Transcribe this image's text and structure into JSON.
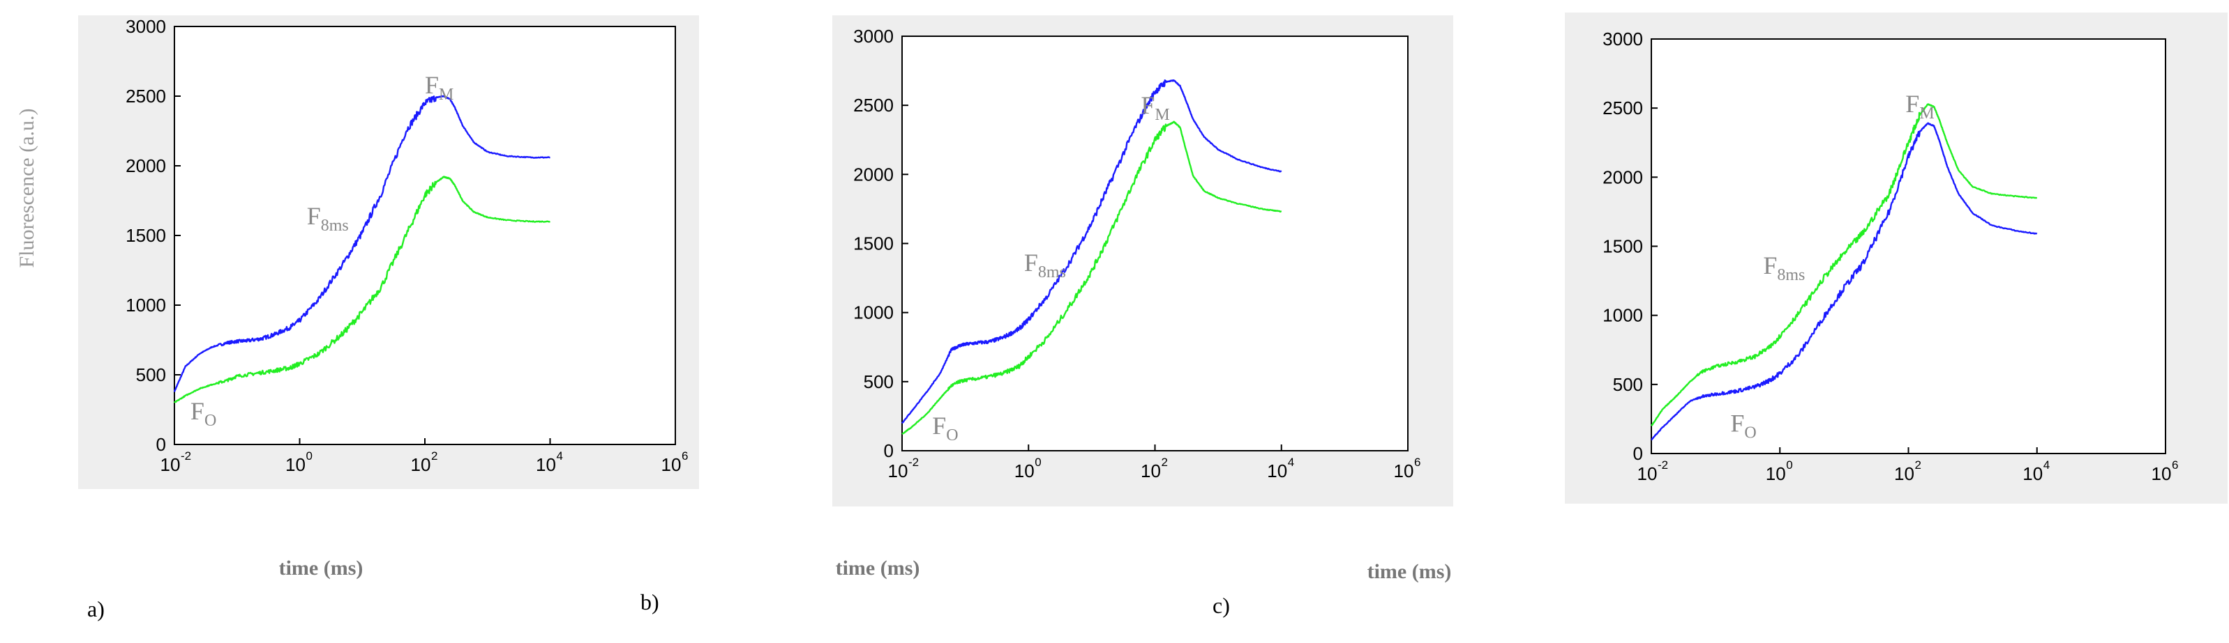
{
  "figure": {
    "ylabel": "Fluorescence (a.u.)",
    "colors": {
      "series_1": "#1a1aff",
      "series_2": "#22ee22",
      "panel_bg": "#eeeeee",
      "axes_bg": "#ffffff"
    }
  },
  "chart_data": [
    {
      "type": "line",
      "panel_label": "a)",
      "xlabel": "time (ms)",
      "ylabel": "Fluorescence (a.u.)",
      "xscale": "log",
      "xlim": [
        0.01,
        1000000
      ],
      "ylim": [
        0,
        3000
      ],
      "xticks": [
        "10",
        "10",
        "10",
        "10",
        "10"
      ],
      "xtick_exponents": [
        "-2",
        "0",
        "2",
        "4",
        "6"
      ],
      "yticks": [
        "0",
        "500",
        "1000",
        "1500",
        "2000",
        "2500",
        "3000"
      ],
      "grid": false,
      "annotations": [
        {
          "text": "F",
          "sub": "M",
          "x": 100,
          "y": 2520
        },
        {
          "text": "F",
          "sub": "8ms",
          "x": 1.3,
          "y": 1580
        },
        {
          "text": "F",
          "sub": "O",
          "x": 0.018,
          "y": 180
        }
      ],
      "series": [
        {
          "color": "#1a1aff",
          "noisy": true,
          "x": [
            0.01,
            0.015,
            0.025,
            0.04,
            0.07,
            0.1,
            0.15,
            0.25,
            0.4,
            0.7,
            1,
            2,
            5,
            10,
            20,
            50,
            100,
            150,
            200,
            250,
            300,
            400,
            600,
            1000,
            2000,
            5000,
            10000
          ],
          "y": [
            380,
            560,
            650,
            700,
            730,
            740,
            745,
            760,
            790,
            840,
            890,
            1040,
            1300,
            1520,
            1800,
            2250,
            2450,
            2490,
            2500,
            2480,
            2420,
            2290,
            2170,
            2100,
            2070,
            2060,
            2060
          ]
        },
        {
          "color": "#22ee22",
          "noisy": true,
          "x": [
            0.01,
            0.015,
            0.025,
            0.04,
            0.07,
            0.1,
            0.2,
            0.4,
            0.7,
            1,
            2,
            5,
            10,
            20,
            50,
            100,
            150,
            200,
            250,
            300,
            400,
            600,
            1000,
            2000,
            5000,
            10000
          ],
          "y": [
            300,
            350,
            400,
            430,
            460,
            490,
            510,
            530,
            550,
            580,
            650,
            800,
            950,
            1130,
            1500,
            1790,
            1880,
            1920,
            1910,
            1860,
            1750,
            1670,
            1630,
            1610,
            1600,
            1600
          ]
        }
      ]
    },
    {
      "type": "line",
      "panel_label": "b)",
      "xlabel": "time (ms)",
      "xscale": "log",
      "xlim": [
        0.01,
        1000000
      ],
      "ylim": [
        0,
        3000
      ],
      "xticks": [
        "10",
        "10",
        "10",
        "10",
        "10"
      ],
      "xtick_exponents": [
        "-2",
        "0",
        "2",
        "4",
        "6"
      ],
      "yticks": [
        "0",
        "500",
        "1000",
        "1500",
        "2000",
        "2500",
        "3000"
      ],
      "grid": false,
      "annotations": [
        {
          "text": "F",
          "sub": "M",
          "x": 60,
          "y": 2440
        },
        {
          "text": "F",
          "sub": "8ms",
          "x": 0.85,
          "y": 1300
        },
        {
          "text": "F",
          "sub": "O",
          "x": 0.03,
          "y": 120
        }
      ],
      "series": [
        {
          "color": "#1a1aff",
          "noisy": true,
          "x": [
            0.01,
            0.015,
            0.025,
            0.04,
            0.06,
            0.08,
            0.1,
            0.15,
            0.25,
            0.4,
            0.7,
            1,
            2,
            5,
            10,
            20,
            50,
            100,
            150,
            200,
            250,
            300,
            400,
            600,
            1000,
            2000,
            5000,
            10000
          ],
          "y": [
            200,
            300,
            430,
            560,
            730,
            760,
            770,
            780,
            790,
            820,
            880,
            950,
            1120,
            1400,
            1650,
            1950,
            2350,
            2600,
            2670,
            2680,
            2640,
            2550,
            2400,
            2270,
            2180,
            2110,
            2050,
            2020
          ]
        },
        {
          "color": "#22ee22",
          "noisy": true,
          "x": [
            0.01,
            0.015,
            0.025,
            0.04,
            0.06,
            0.08,
            0.1,
            0.2,
            0.4,
            0.7,
            1,
            2,
            5,
            10,
            20,
            50,
            100,
            150,
            200,
            250,
            300,
            400,
            600,
            1000,
            2000,
            5000,
            10000
          ],
          "y": [
            120,
            180,
            270,
            380,
            470,
            500,
            510,
            530,
            560,
            610,
            680,
            820,
            1080,
            1300,
            1580,
            1980,
            2250,
            2350,
            2380,
            2340,
            2200,
            1990,
            1880,
            1830,
            1790,
            1750,
            1730
          ]
        }
      ]
    },
    {
      "type": "line",
      "panel_label": "c)",
      "xlabel": "time (ms)",
      "xscale": "log",
      "xlim": [
        0.01,
        1000000
      ],
      "ylim": [
        0,
        3000
      ],
      "xticks": [
        "10",
        "10",
        "10",
        "10",
        "10"
      ],
      "xtick_exponents": [
        "-2",
        "0",
        "2",
        "4",
        "6"
      ],
      "yticks": [
        "0",
        "500",
        "1000",
        "1500",
        "2000",
        "2500",
        "3000"
      ],
      "grid": false,
      "annotations": [
        {
          "text": "F",
          "sub": "M",
          "x": 90,
          "y": 2470
        },
        {
          "text": "F",
          "sub": "8ms",
          "x": 0.55,
          "y": 1300
        },
        {
          "text": "F",
          "sub": "O",
          "x": 0.17,
          "y": 160
        }
      ],
      "series": [
        {
          "color": "#1a1aff",
          "noisy": true,
          "x": [
            0.01,
            0.015,
            0.025,
            0.04,
            0.06,
            0.1,
            0.2,
            0.4,
            0.7,
            1,
            2,
            5,
            10,
            20,
            50,
            100,
            150,
            200,
            250,
            300,
            400,
            600,
            1000,
            2000,
            5000,
            10000
          ],
          "y": [
            100,
            190,
            290,
            380,
            410,
            430,
            450,
            480,
            530,
            580,
            720,
            1000,
            1200,
            1380,
            1750,
            2150,
            2330,
            2390,
            2370,
            2270,
            2080,
            1880,
            1740,
            1650,
            1610,
            1590
          ]
        },
        {
          "color": "#22ee22",
          "noisy": true,
          "x": [
            0.01,
            0.015,
            0.025,
            0.04,
            0.06,
            0.1,
            0.2,
            0.4,
            0.7,
            1,
            2,
            5,
            10,
            20,
            50,
            100,
            150,
            200,
            250,
            300,
            400,
            600,
            1000,
            2000,
            5000,
            10000
          ],
          "y": [
            200,
            320,
            420,
            520,
            590,
            630,
            660,
            700,
            770,
            850,
            1020,
            1280,
            1450,
            1600,
            1880,
            2250,
            2450,
            2530,
            2510,
            2420,
            2250,
            2050,
            1930,
            1880,
            1860,
            1850
          ]
        }
      ]
    }
  ]
}
